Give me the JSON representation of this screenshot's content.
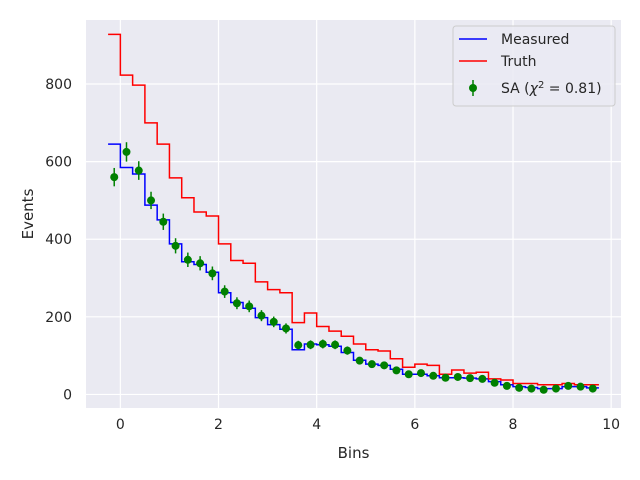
{
  "chart_data": {
    "type": "line",
    "title": "",
    "xlabel": "Bins",
    "ylabel": "Events",
    "xlim": [
      -0.7,
      10.2
    ],
    "ylim": [
      -35,
      965
    ],
    "xticks": [
      0,
      2,
      4,
      6,
      8,
      10
    ],
    "yticks": [
      0,
      200,
      400,
      600,
      800
    ],
    "grid": true,
    "legend_position": "top-right",
    "step_edges": [
      -0.25,
      0.0,
      0.25,
      0.5,
      0.75,
      1.0,
      1.25,
      1.5,
      1.75,
      2.0,
      2.25,
      2.5,
      2.75,
      3.0,
      3.25,
      3.5,
      3.75,
      4.0,
      4.25,
      4.5,
      4.75,
      5.0,
      5.25,
      5.5,
      5.75,
      6.0,
      6.25,
      6.5,
      6.75,
      7.0,
      7.25,
      7.5,
      7.75,
      8.0,
      8.25,
      8.5,
      8.75,
      9.0,
      9.25,
      9.5,
      9.75
    ],
    "series": [
      {
        "name": "Measured",
        "kind": "step",
        "color": "#0000ff",
        "values": [
          645,
          585,
          568,
          488,
          450,
          388,
          342,
          335,
          315,
          262,
          237,
          222,
          198,
          180,
          168,
          115,
          130,
          128,
          124,
          108,
          88,
          78,
          75,
          65,
          52,
          52,
          48,
          43,
          43,
          42,
          40,
          33,
          25,
          20,
          18,
          15,
          15,
          20,
          20,
          17
        ]
      },
      {
        "name": "Truth",
        "kind": "step",
        "color": "#ff0000",
        "values": [
          928,
          823,
          797,
          700,
          645,
          558,
          507,
          470,
          460,
          388,
          345,
          338,
          290,
          270,
          262,
          185,
          210,
          175,
          163,
          150,
          130,
          115,
          112,
          92,
          70,
          78,
          75,
          52,
          63,
          55,
          57,
          40,
          37,
          28,
          28,
          25,
          25,
          28,
          25,
          25
        ]
      },
      {
        "name": "SA ($\\chi^2=0.81$)",
        "kind": "errorbar",
        "color": "#008000",
        "x": [
          -0.125,
          0.125,
          0.375,
          0.625,
          0.875,
          1.125,
          1.375,
          1.625,
          1.875,
          2.125,
          2.375,
          2.625,
          2.875,
          3.125,
          3.375,
          3.625,
          3.875,
          4.125,
          4.375,
          4.625,
          4.875,
          5.125,
          5.375,
          5.625,
          5.875,
          6.125,
          6.375,
          6.625,
          6.875,
          7.125,
          7.375,
          7.625,
          7.875,
          8.125,
          8.375,
          8.625,
          8.875,
          9.125,
          9.375,
          9.625
        ],
        "values": [
          560,
          625,
          577,
          500,
          445,
          383,
          347,
          338,
          312,
          265,
          235,
          227,
          203,
          187,
          170,
          127,
          128,
          130,
          128,
          113,
          87,
          78,
          75,
          62,
          52,
          55,
          48,
          43,
          45,
          42,
          40,
          30,
          22,
          17,
          15,
          12,
          15,
          22,
          20,
          15
        ]
      }
    ]
  }
}
